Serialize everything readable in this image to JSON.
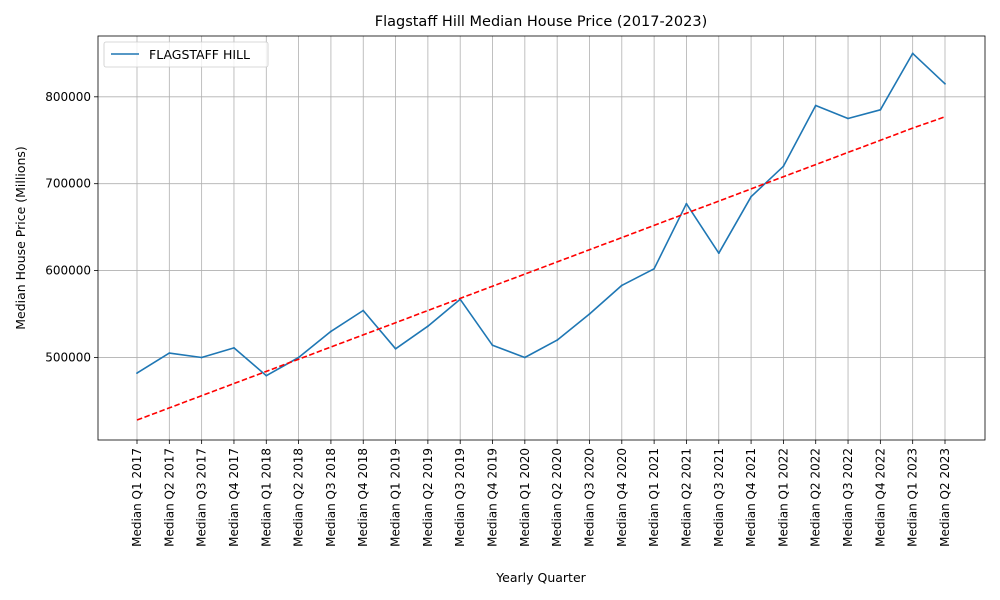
{
  "chart_data": {
    "type": "line",
    "title": "Flagstaff Hill Median House Price (2017-2023)",
    "xlabel": "Yearly Quarter",
    "ylabel": "Median House Price (Millions)",
    "grid": true,
    "legend_position": "top-left",
    "ylim": [
      405000,
      870000
    ],
    "yticks": [
      500000,
      600000,
      700000,
      800000
    ],
    "categories": [
      "Median Q1 2017",
      "Median Q2 2017",
      "Median Q3 2017",
      "Median Q4 2017",
      "Median Q1 2018",
      "Median Q2 2018",
      "Median Q3 2018",
      "Median Q4 2018",
      "Median Q1 2019",
      "Median Q2 2019",
      "Median Q3 2019",
      "Median Q4 2019",
      "Median Q1 2020",
      "Median Q2 2020",
      "Median Q3 2020",
      "Median Q4 2020",
      "Median Q1 2021",
      "Median Q2 2021",
      "Median Q3 2021",
      "Median Q4 2021",
      "Median Q1 2022",
      "Median Q2 2022",
      "Median Q3 2022",
      "Median Q4 2022",
      "Median Q1 2023",
      "Median Q2 2023"
    ],
    "series": [
      {
        "name": "FLAGSTAFF HILL",
        "color": "#1f77b4",
        "style": "solid",
        "values": [
          482000,
          505000,
          500000,
          511000,
          479000,
          500000,
          530000,
          554000,
          510000,
          536000,
          567000,
          514000,
          500000,
          520000,
          550000,
          583000,
          602000,
          677000,
          620000,
          685000,
          720000,
          790000,
          775000,
          785000,
          850000,
          815000
        ]
      },
      {
        "color": "#ff0000",
        "style": "dashed",
        "values": [
          428000,
          442000,
          456000,
          470000,
          484000,
          498000,
          512000,
          526000,
          540000,
          554000,
          568000,
          582000,
          596000,
          610000,
          624000,
          638000,
          652000,
          666000,
          680000,
          694000,
          708000,
          722000,
          736000,
          750000,
          764000,
          777000
        ]
      }
    ]
  }
}
